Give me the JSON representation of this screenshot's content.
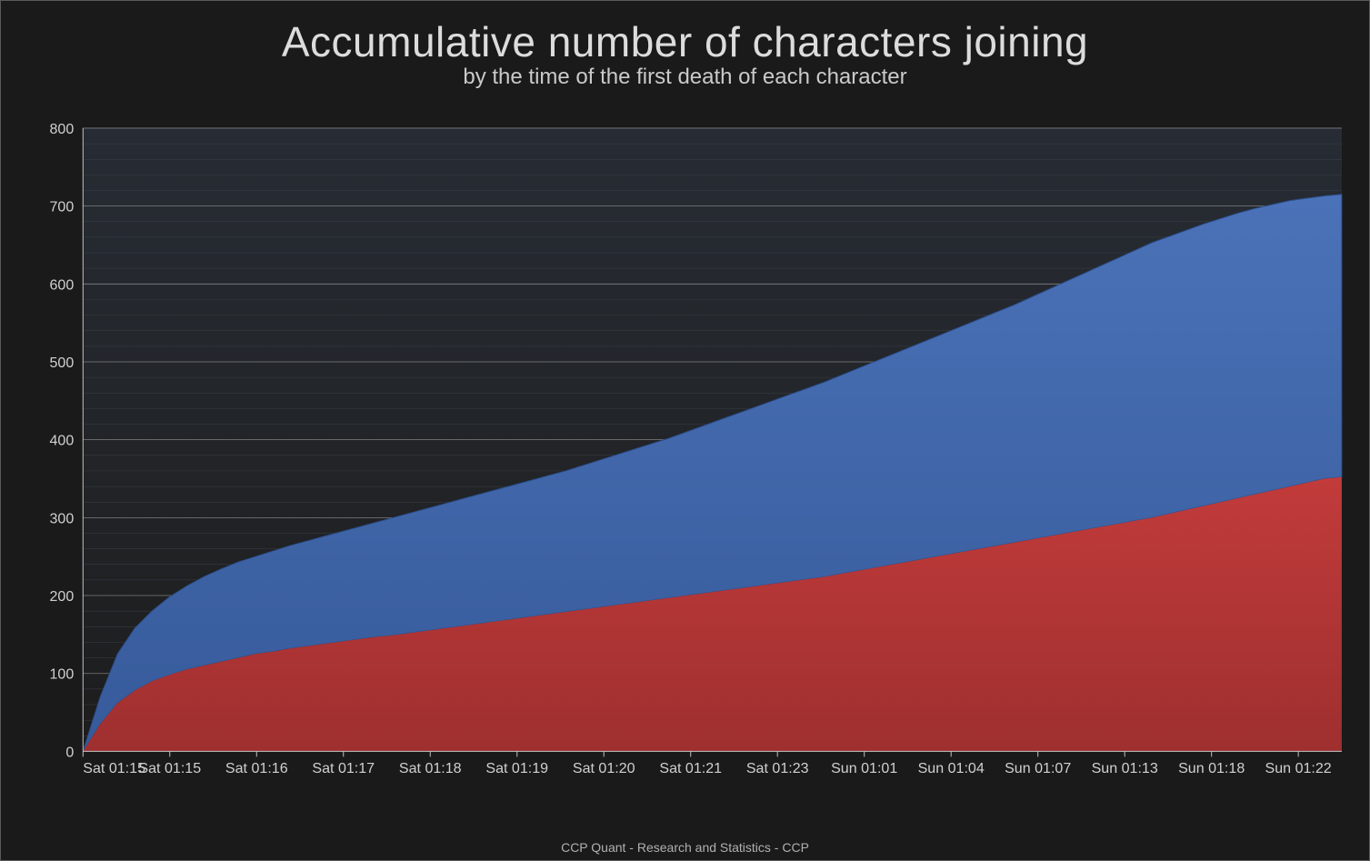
{
  "title": "Accumulative number of characters joining",
  "subtitle": "by the time of the first death of each character",
  "footer": "CCP Quant -  Research and Statistics  -  CCP",
  "chart": {
    "type": "area-stacked",
    "background_color": "#1a1a1a",
    "plot_background_gradient_top": "#272c34",
    "plot_background_gradient_bottom": "#1d1d1d",
    "grid_minor_color": "#3a3f48",
    "grid_major_color": "#c8c8c8",
    "grid_major_width": 0.8,
    "grid_minor_width": 0.5,
    "axis_line_color": "#c0c0c0",
    "y": {
      "min": 0,
      "max": 800,
      "major_step": 100,
      "minor_step": 20,
      "ticks": [
        0,
        100,
        200,
        300,
        400,
        500,
        600,
        700,
        800
      ],
      "label_fontsize": 16
    },
    "x": {
      "labels": [
        "Sat 01:15",
        "Sat 01:15",
        "Sat 01:16",
        "Sat 01:17",
        "Sat 01:18",
        "Sat 01:19",
        "Sat 01:20",
        "Sat 01:21",
        "Sat 01:23",
        "Sun 01:01",
        "Sun 01:04",
        "Sun 01:07",
        "Sun 01:13",
        "Sun 01:18",
        "Sun 01:22"
      ],
      "label_fontsize": 16
    },
    "series": [
      {
        "name": "series-red",
        "fill_top": "#c23b3b",
        "fill_bottom": "#9f2f2f",
        "stroke": "#d14545",
        "stroke_width": 0,
        "values": [
          0,
          35,
          62,
          78,
          90,
          98,
          105,
          110,
          115,
          120,
          125,
          128,
          132,
          135,
          138,
          141,
          144,
          147,
          149,
          152,
          155,
          158,
          161,
          164,
          167,
          170,
          173,
          176,
          179,
          182,
          185,
          188,
          191,
          194,
          197,
          200,
          203,
          206,
          209,
          212,
          215,
          218,
          221,
          224,
          228,
          232,
          236,
          240,
          244,
          248,
          252,
          256,
          260,
          264,
          268,
          272,
          276,
          280,
          284,
          288,
          292,
          296,
          300,
          305,
          310,
          315,
          320,
          325,
          330,
          335,
          340,
          345,
          350,
          352
        ]
      },
      {
        "name": "series-blue",
        "fill_top": "#4b72b8",
        "fill_bottom": "#365a9a",
        "stroke": "#2c4f8c",
        "stroke_width": 1,
        "values": [
          0,
          70,
          125,
          158,
          180,
          198,
          212,
          224,
          234,
          243,
          250,
          257,
          264,
          270,
          276,
          282,
          288,
          294,
          300,
          306,
          312,
          318,
          324,
          330,
          336,
          342,
          348,
          354,
          360,
          367,
          374,
          381,
          388,
          395,
          402,
          410,
          418,
          426,
          434,
          442,
          450,
          458,
          466,
          474,
          483,
          492,
          501,
          510,
          519,
          528,
          537,
          546,
          555,
          564,
          573,
          583,
          593,
          603,
          613,
          623,
          633,
          643,
          653,
          661,
          669,
          677,
          684,
          691,
          697,
          702,
          707,
          710,
          713,
          715
        ]
      }
    ],
    "title_fontsize": 46,
    "subtitle_fontsize": 24,
    "footer_fontsize": 14,
    "text_color": "#d0d0d0"
  }
}
